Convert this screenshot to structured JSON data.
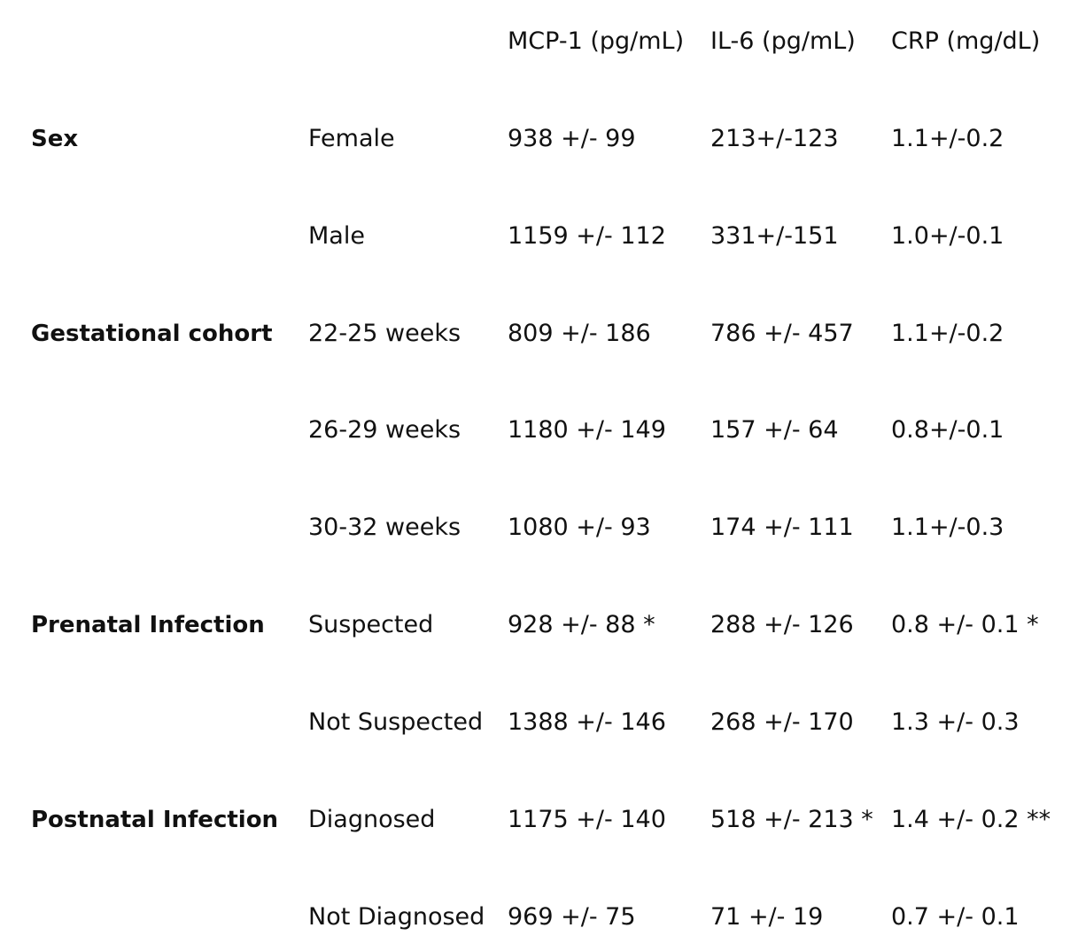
{
  "headers": {
    "mcp1": "MCP-1 (pg/mL)",
    "il6": "IL-6 (pg/mL)",
    "crp": "CRP (mg/dL)"
  },
  "rows": [
    {
      "group": "Sex",
      "subgroup": "Female",
      "mcp1": "938 +/- 99",
      "il6": "213+/-123",
      "crp": "1.1+/-0.2"
    },
    {
      "group": "",
      "subgroup": "Male",
      "mcp1": "1159 +/- 112",
      "il6": "331+/-151",
      "crp": "1.0+/-0.1"
    },
    {
      "group": "Gestational cohort",
      "subgroup": "22-25 weeks",
      "mcp1": "809 +/- 186",
      "il6": "786 +/- 457",
      "crp": "1.1+/-0.2"
    },
    {
      "group": "",
      "subgroup": "26-29 weeks",
      "mcp1": "1180 +/- 149",
      "il6": "157 +/- 64",
      "crp": "0.8+/-0.1"
    },
    {
      "group": "",
      "subgroup": "30-32 weeks",
      "mcp1": "1080 +/- 93",
      "il6": "174 +/- 111",
      "crp": "1.1+/-0.3"
    },
    {
      "group": "Prenatal Infection",
      "subgroup": "Suspected",
      "mcp1": "928 +/- 88 *",
      "il6": "288 +/- 126",
      "crp": "0.8 +/- 0.1 *"
    },
    {
      "group": "",
      "subgroup": "Not Suspected",
      "mcp1": "1388 +/- 146",
      "il6": "268 +/- 170",
      "crp": "1.3 +/- 0.3"
    },
    {
      "group": "Postnatal Infection",
      "subgroup": "Diagnosed",
      "mcp1": "1175 +/- 140",
      "il6": "518 +/- 213 *",
      "crp": "1.4 +/- 0.2 **"
    },
    {
      "group": "",
      "subgroup": "Not Diagnosed",
      "mcp1": "969 +/- 75",
      "il6": "71 +/- 19",
      "crp": "0.7 +/- 0.1"
    }
  ]
}
